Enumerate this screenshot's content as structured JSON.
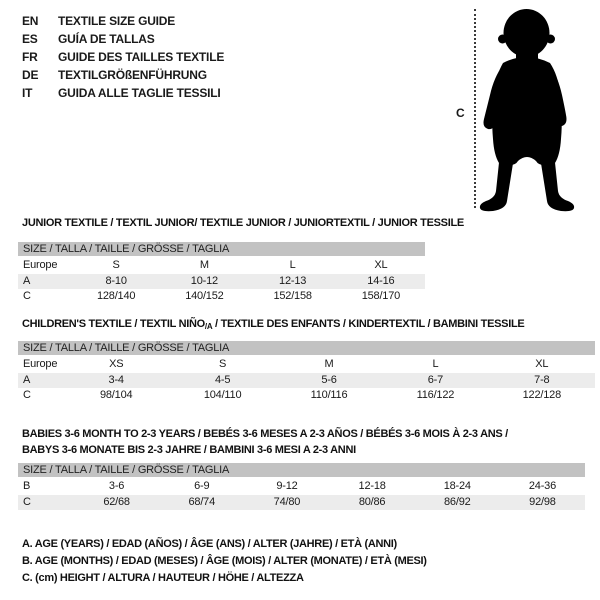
{
  "colors": {
    "text": "#1a1a1a",
    "size_bar_bg": "#c2c2c2",
    "row_alt_bg": "#ececec",
    "silhouette": "#000000"
  },
  "language_guide": {
    "items": [
      {
        "code": "EN",
        "label": "TEXTILE SIZE GUIDE"
      },
      {
        "code": "ES",
        "label": "GUÍA DE TALLAS"
      },
      {
        "code": "FR",
        "label": "GUIDE DES TAILLES TEXTILE"
      },
      {
        "code": "DE",
        "label": "TEXTILGRÖßENFÜHRUNG"
      },
      {
        "code": "IT",
        "label": "GUIDA ALLE TAGLIE TESSILI"
      }
    ]
  },
  "figure": {
    "height_marker_label": "C",
    "silhouette": "toddler-silhouette"
  },
  "sections": [
    {
      "id": "junior",
      "heading": "JUNIOR TEXTILE / TEXTIL JUNIOR/ TEXTILE JUNIOR / JUNIORTEXTIL / JUNIOR TESSILE",
      "size_bar": "SIZE / TALLA / TAILLE / GRÖSSE / TAGLIA",
      "table": {
        "rows": [
          {
            "label": "Europe",
            "cells": [
              "S",
              "M",
              "L",
              "XL"
            ]
          },
          {
            "label": "A",
            "cells": [
              "8-10",
              "10-12",
              "12-13",
              "14-16"
            ]
          },
          {
            "label": "C",
            "cells": [
              "128/140",
              "140/152",
              "152/158",
              "158/170"
            ]
          }
        ]
      }
    },
    {
      "id": "children",
      "heading_parts": {
        "main": "CHILDREN'S TEXTILE / TEXTIL NIÑO",
        "sub": "/A",
        "rest": " / TEXTILE DES ENFANTS / KINDERTEXTIL / BAMBINI TESSILE"
      },
      "size_bar": "SIZE / TALLA / TAILLE / GRÖSSE / TAGLIA",
      "table": {
        "rows": [
          {
            "label": "Europe",
            "cells": [
              "XS",
              "S",
              "M",
              "L",
              "XL"
            ]
          },
          {
            "label": "A",
            "cells": [
              "3-4",
              "4-5",
              "5-6",
              "6-7",
              "7-8"
            ]
          },
          {
            "label": "C",
            "cells": [
              "98/104",
              "104/110",
              "110/116",
              "116/122",
              "122/128"
            ]
          }
        ]
      }
    },
    {
      "id": "babies",
      "heading_line1": "BABIES 3-6 MONTH TO 2-3 YEARS / BEBÉS 3-6 MESES A 2-3 AÑOS / BÉBÉS 3-6 MOIS À 2-3 ANS /",
      "heading_line2": "BABYS 3-6 MONATE BIS 2-3 JAHRE / BAMBINI 3-6 MESI A 2-3 ANNI",
      "size_bar": "SIZE / TALLA / TAILLE / GRÖSSE / TAGLIA",
      "table": {
        "rows": [
          {
            "label": "B",
            "cells": [
              "3-6",
              "6-9",
              "9-12",
              "12-18",
              "18-24",
              "24-36"
            ]
          },
          {
            "label": "C",
            "cells": [
              "62/68",
              "68/74",
              "74/80",
              "80/86",
              "86/92",
              "92/98"
            ]
          }
        ]
      }
    }
  ],
  "footnotes": [
    "A. AGE (YEARS) / EDAD (AÑOS) / ÂGE (ANS) / ALTER (JAHRE) / ETÀ (ANNI)",
    "B. AGE (MONTHS) / EDAD (MESES) / ÂGE (MOIS) / ALTER (MONATE) / ETÀ (MESI)",
    "C. (cm) HEIGHT / ALTURA / HAUTEUR / HÖHE / ALTEZZA"
  ]
}
